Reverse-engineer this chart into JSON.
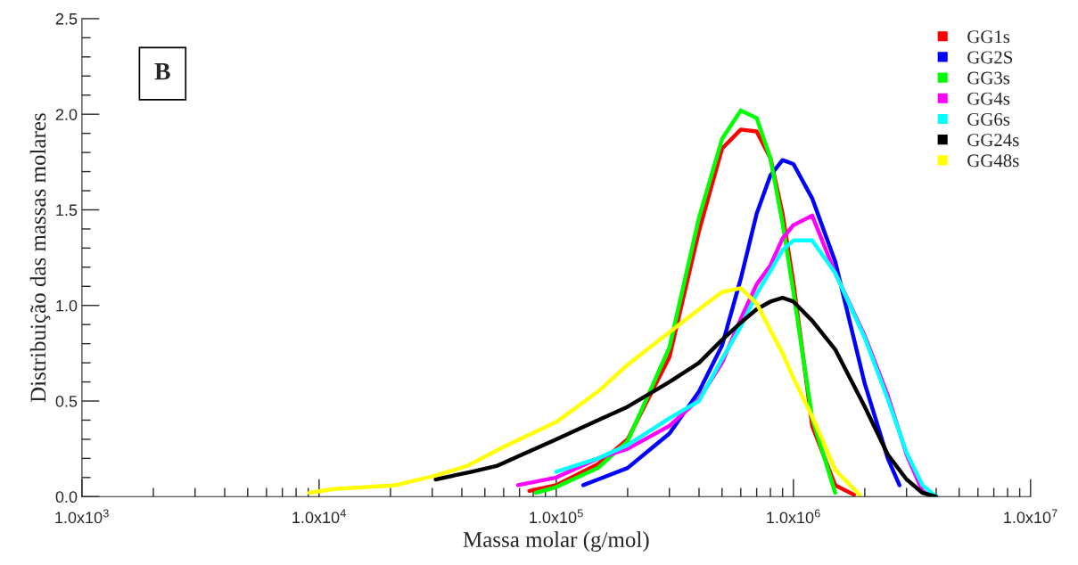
{
  "chart_data": {
    "type": "line",
    "xlabel": "Massa molar (g/mol)",
    "ylabel": "Distribuição das massas molares",
    "log": "x",
    "xlim": [
      1000,
      10000000
    ],
    "ylim": [
      0,
      2.5
    ],
    "xticks": [
      {
        "value": 1000,
        "label": "1.0x10$^{3}$"
      },
      {
        "value": 10000,
        "label": "1.0x10$^{4}$"
      },
      {
        "value": 100000,
        "label": "1.0x10$^{5}$"
      },
      {
        "value": 1000000,
        "label": "1.0x10$^{6}$"
      },
      {
        "value": 10000000,
        "label": "1.0x10$^{7}$"
      }
    ],
    "yticks": [
      {
        "value": 0,
        "label": "0.0"
      },
      {
        "value": 0.5,
        "label": "0.5"
      },
      {
        "value": 1,
        "label": "1.0"
      },
      {
        "value": 1.5,
        "label": "1.5"
      },
      {
        "value": 2,
        "label": "2.0"
      },
      {
        "value": 2.5,
        "label": "2.5"
      }
    ],
    "grid": false,
    "legend": "top right",
    "line_style": "solid",
    "annotations": [
      "B"
    ],
    "series": [
      {
        "name": "GG1s",
        "color": "#ff0000",
        "x": [
          77000,
          100000,
          150000,
          200000,
          300000,
          400000,
          500000,
          600000,
          700000,
          800000,
          900000,
          1000000,
          1200000,
          1500000,
          1800000
        ],
        "values": [
          0.03,
          0.06,
          0.17,
          0.3,
          0.73,
          1.39,
          1.82,
          1.92,
          1.91,
          1.77,
          1.48,
          1.12,
          0.37,
          0.06,
          0.01
        ]
      },
      {
        "name": "GG2S",
        "color": "#0000ff",
        "x": [
          130000,
          150000,
          200000,
          300000,
          400000,
          500000,
          600000,
          700000,
          800000,
          900000,
          1000000,
          1200000,
          1500000,
          2000000,
          2500000,
          2800000
        ],
        "values": [
          0.06,
          0.09,
          0.15,
          0.33,
          0.55,
          0.79,
          1.14,
          1.48,
          1.68,
          1.76,
          1.74,
          1.56,
          1.23,
          0.59,
          0.2,
          0.06
        ]
      },
      {
        "name": "GG3s",
        "color": "#00ff00",
        "x": [
          82000,
          100000,
          150000,
          200000,
          300000,
          400000,
          500000,
          600000,
          700000,
          800000,
          900000,
          1000000,
          1200000,
          1500000
        ],
        "values": [
          0.02,
          0.05,
          0.15,
          0.29,
          0.78,
          1.46,
          1.87,
          2.02,
          1.98,
          1.77,
          1.43,
          1.07,
          0.41,
          0.02
        ]
      },
      {
        "name": "GG4s",
        "color": "#ff00ff",
        "x": [
          69000,
          100000,
          150000,
          200000,
          300000,
          400000,
          500000,
          600000,
          700000,
          800000,
          900000,
          1000000,
          1200000,
          1500000,
          2000000,
          2500000,
          3000000,
          3500000,
          3800000
        ],
        "values": [
          0.06,
          0.1,
          0.2,
          0.25,
          0.37,
          0.51,
          0.7,
          0.93,
          1.11,
          1.21,
          1.35,
          1.42,
          1.47,
          1.17,
          0.84,
          0.53,
          0.22,
          0.03,
          0.0
        ]
      },
      {
        "name": "GG6s",
        "color": "#00ffff",
        "x": [
          100000,
          150000,
          200000,
          300000,
          400000,
          500000,
          600000,
          700000,
          800000,
          900000,
          1000000,
          1200000,
          1500000,
          2000000,
          2500000,
          3000000,
          3500000,
          4000000
        ],
        "values": [
          0.13,
          0.2,
          0.27,
          0.41,
          0.5,
          0.72,
          0.89,
          1.06,
          1.18,
          1.29,
          1.34,
          1.34,
          1.17,
          0.83,
          0.51,
          0.23,
          0.06,
          0.0
        ]
      },
      {
        "name": "GG24s",
        "color": "#000000",
        "x": [
          31000,
          44000,
          56000,
          100000,
          150000,
          200000,
          300000,
          400000,
          500000,
          600000,
          700000,
          800000,
          900000,
          1000000,
          1200000,
          1500000,
          2000000,
          2500000,
          3000000,
          3500000,
          4000000
        ],
        "values": [
          0.09,
          0.13,
          0.16,
          0.3,
          0.4,
          0.47,
          0.6,
          0.7,
          0.82,
          0.91,
          0.98,
          1.02,
          1.04,
          1.02,
          0.92,
          0.77,
          0.47,
          0.22,
          0.09,
          0.02,
          0.0
        ]
      },
      {
        "name": "GG48s",
        "color": "#ffff00",
        "x": [
          9100,
          11500,
          16000,
          21000,
          31000,
          42000,
          60000,
          100000,
          150000,
          200000,
          300000,
          400000,
          500000,
          600000,
          700000,
          800000,
          900000,
          1000000,
          1200000,
          1500000,
          1900000
        ],
        "values": [
          0.02,
          0.04,
          0.05,
          0.06,
          0.11,
          0.16,
          0.26,
          0.39,
          0.55,
          0.69,
          0.86,
          0.98,
          1.07,
          1.09,
          1.01,
          0.87,
          0.75,
          0.62,
          0.42,
          0.14,
          0.01
        ]
      }
    ]
  }
}
